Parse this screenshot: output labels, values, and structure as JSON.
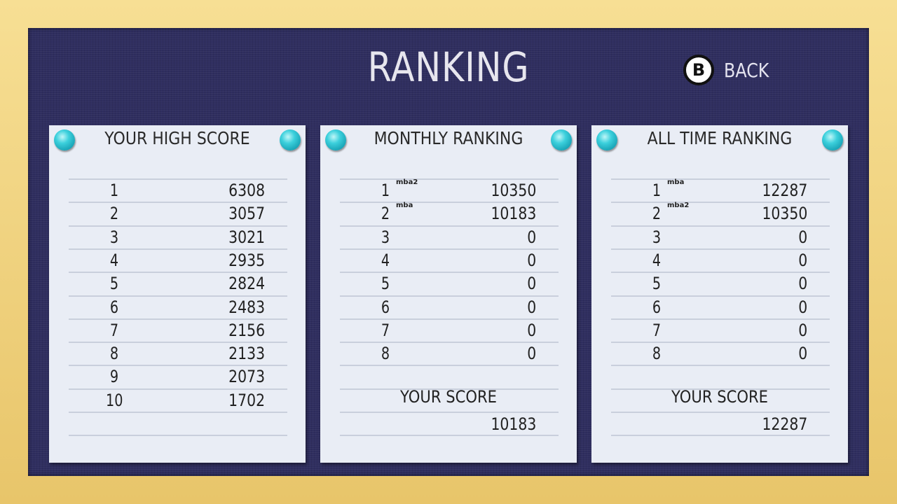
{
  "title": "RANKING",
  "back": {
    "button": "B",
    "label": "BACK"
  },
  "panels": [
    {
      "title": "YOUR HIGH SCORE",
      "rows": [
        {
          "rank": "1",
          "score": "6308"
        },
        {
          "rank": "2",
          "score": "3057"
        },
        {
          "rank": "3",
          "score": "3021"
        },
        {
          "rank": "4",
          "score": "2935"
        },
        {
          "rank": "5",
          "score": "2824"
        },
        {
          "rank": "6",
          "score": "2483"
        },
        {
          "rank": "7",
          "score": "2156"
        },
        {
          "rank": "8",
          "score": "2133"
        },
        {
          "rank": "9",
          "score": "2073"
        },
        {
          "rank": "10",
          "score": "1702"
        }
      ]
    },
    {
      "title": "MONTHLY RANKING",
      "rows": [
        {
          "rank": "1",
          "name": "mba2",
          "score": "10350"
        },
        {
          "rank": "2",
          "name": "mba",
          "score": "10183"
        },
        {
          "rank": "3",
          "score": "0"
        },
        {
          "rank": "4",
          "score": "0"
        },
        {
          "rank": "5",
          "score": "0"
        },
        {
          "rank": "6",
          "score": "0"
        },
        {
          "rank": "7",
          "score": "0"
        },
        {
          "rank": "8",
          "score": "0"
        }
      ],
      "your_score_label": "YOUR SCORE",
      "your_score": "10183"
    },
    {
      "title": "ALL TIME RANKING",
      "rows": [
        {
          "rank": "1",
          "name": "mba",
          "score": "12287"
        },
        {
          "rank": "2",
          "name": "mba2",
          "score": "10350"
        },
        {
          "rank": "3",
          "score": "0"
        },
        {
          "rank": "4",
          "score": "0"
        },
        {
          "rank": "5",
          "score": "0"
        },
        {
          "rank": "6",
          "score": "0"
        },
        {
          "rank": "7",
          "score": "0"
        },
        {
          "rank": "8",
          "score": "0"
        }
      ],
      "your_score_label": "YOUR SCORE",
      "your_score": "12287"
    }
  ]
}
